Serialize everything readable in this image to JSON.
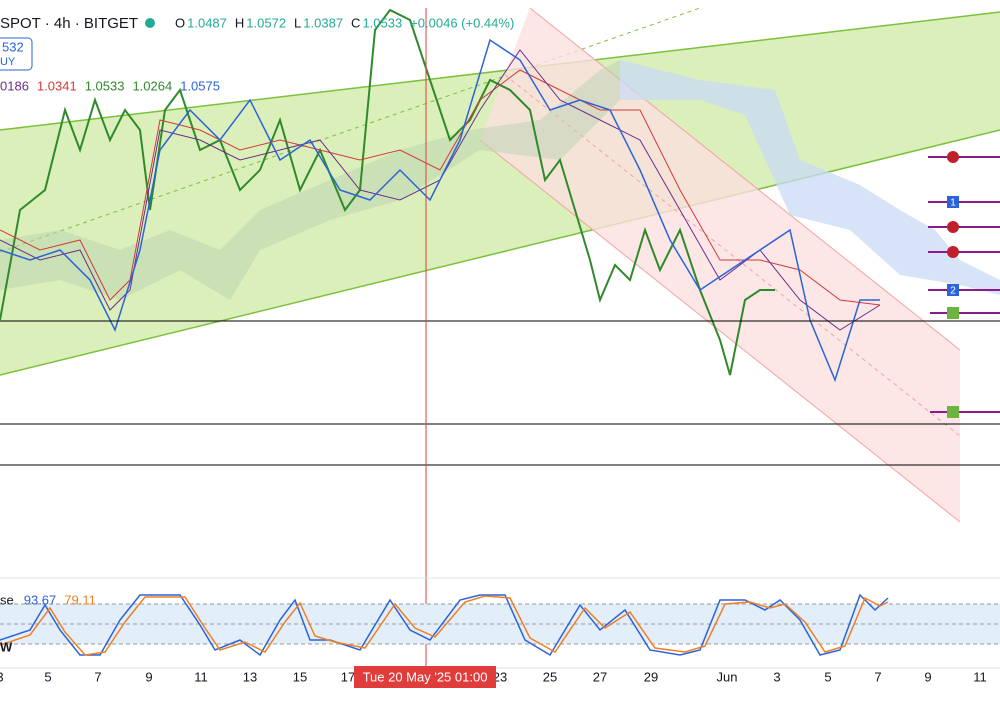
{
  "header": {
    "symbol": "SPOT · 4h · BITGET",
    "ohlc": [
      {
        "key": "O",
        "value": "1.0487"
      },
      {
        "key": "H",
        "value": "1.0572"
      },
      {
        "key": "L",
        "value": "1.0387"
      },
      {
        "key": "C",
        "value": "1.0533"
      }
    ],
    "change": "+0.0046 (+0.44%)"
  },
  "price_badge": [
    "532",
    "UY"
  ],
  "indicator_values": [
    "0186",
    "1.0341",
    "1.0533",
    "1.0264",
    "1.0575"
  ],
  "oscillator": {
    "label": "se",
    "values": [
      "93.67",
      "79.11"
    ],
    "side_label": "W"
  },
  "order_markers": [
    "1",
    "2"
  ],
  "x_axis": {
    "labels": [
      "3",
      "5",
      "7",
      "9",
      "11",
      "13",
      "15",
      "17",
      "23",
      "25",
      "27",
      "29",
      "Jun",
      "3",
      "5",
      "7",
      "9",
      "11"
    ],
    "crosshair": "Tue 20 May '25  01:00"
  }
}
